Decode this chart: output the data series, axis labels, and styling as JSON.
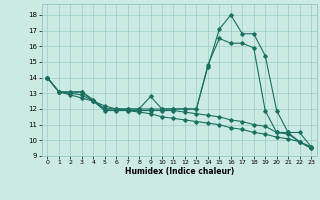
{
  "xlabel": "Humidex (Indice chaleur)",
  "bg_color": "#cceae4",
  "line_color": "#1a7060",
  "grid_color": "#99ccc4",
  "xlim": [
    -0.5,
    23.5
  ],
  "ylim": [
    9,
    18.7
  ],
  "yticks": [
    9,
    10,
    11,
    12,
    13,
    14,
    15,
    16,
    17,
    18
  ],
  "xticks": [
    0,
    1,
    2,
    3,
    4,
    5,
    6,
    7,
    8,
    9,
    10,
    11,
    12,
    13,
    14,
    15,
    16,
    17,
    18,
    19,
    20,
    21,
    22,
    23
  ],
  "line1_x": [
    0,
    1,
    2,
    3,
    4,
    5,
    6,
    7,
    8,
    9,
    10,
    11,
    12,
    13,
    14,
    15,
    16,
    17,
    18,
    19,
    20,
    21,
    22,
    23
  ],
  "line1_y": [
    14.0,
    13.1,
    13.1,
    13.1,
    12.6,
    12.0,
    12.0,
    12.0,
    12.0,
    12.8,
    12.0,
    12.0,
    12.0,
    12.0,
    14.7,
    17.1,
    18.0,
    16.8,
    16.8,
    15.4,
    11.9,
    10.5,
    10.5,
    9.6
  ],
  "line2_x": [
    0,
    1,
    2,
    3,
    4,
    5,
    6,
    7,
    8,
    9,
    10,
    11,
    12,
    13,
    14,
    15,
    16,
    17,
    18,
    19,
    20,
    21,
    22,
    23
  ],
  "line2_y": [
    14.0,
    13.1,
    13.0,
    13.1,
    12.5,
    12.0,
    12.0,
    12.0,
    12.0,
    12.0,
    12.0,
    12.0,
    12.0,
    12.0,
    14.8,
    16.5,
    16.2,
    16.2,
    15.9,
    11.9,
    10.5,
    10.5,
    9.9,
    9.5
  ],
  "line3_x": [
    0,
    1,
    2,
    3,
    4,
    5,
    6,
    7,
    8,
    9,
    10,
    11,
    12,
    13,
    14,
    15,
    16,
    17,
    18,
    19,
    20,
    21,
    22,
    23
  ],
  "line3_y": [
    14.0,
    13.1,
    13.0,
    12.9,
    12.5,
    11.9,
    11.9,
    11.9,
    11.9,
    11.9,
    11.9,
    11.9,
    11.8,
    11.7,
    11.6,
    11.5,
    11.3,
    11.2,
    11.0,
    10.9,
    10.5,
    10.4,
    9.9,
    9.5
  ],
  "line4_x": [
    0,
    1,
    2,
    3,
    4,
    5,
    6,
    7,
    8,
    9,
    10,
    11,
    12,
    13,
    14,
    15,
    16,
    17,
    18,
    19,
    20,
    21,
    22,
    23
  ],
  "line4_y": [
    14.0,
    13.1,
    12.9,
    12.7,
    12.5,
    12.2,
    12.0,
    11.9,
    11.8,
    11.7,
    11.5,
    11.4,
    11.3,
    11.2,
    11.1,
    11.0,
    10.8,
    10.7,
    10.5,
    10.4,
    10.2,
    10.1,
    9.9,
    9.6
  ]
}
